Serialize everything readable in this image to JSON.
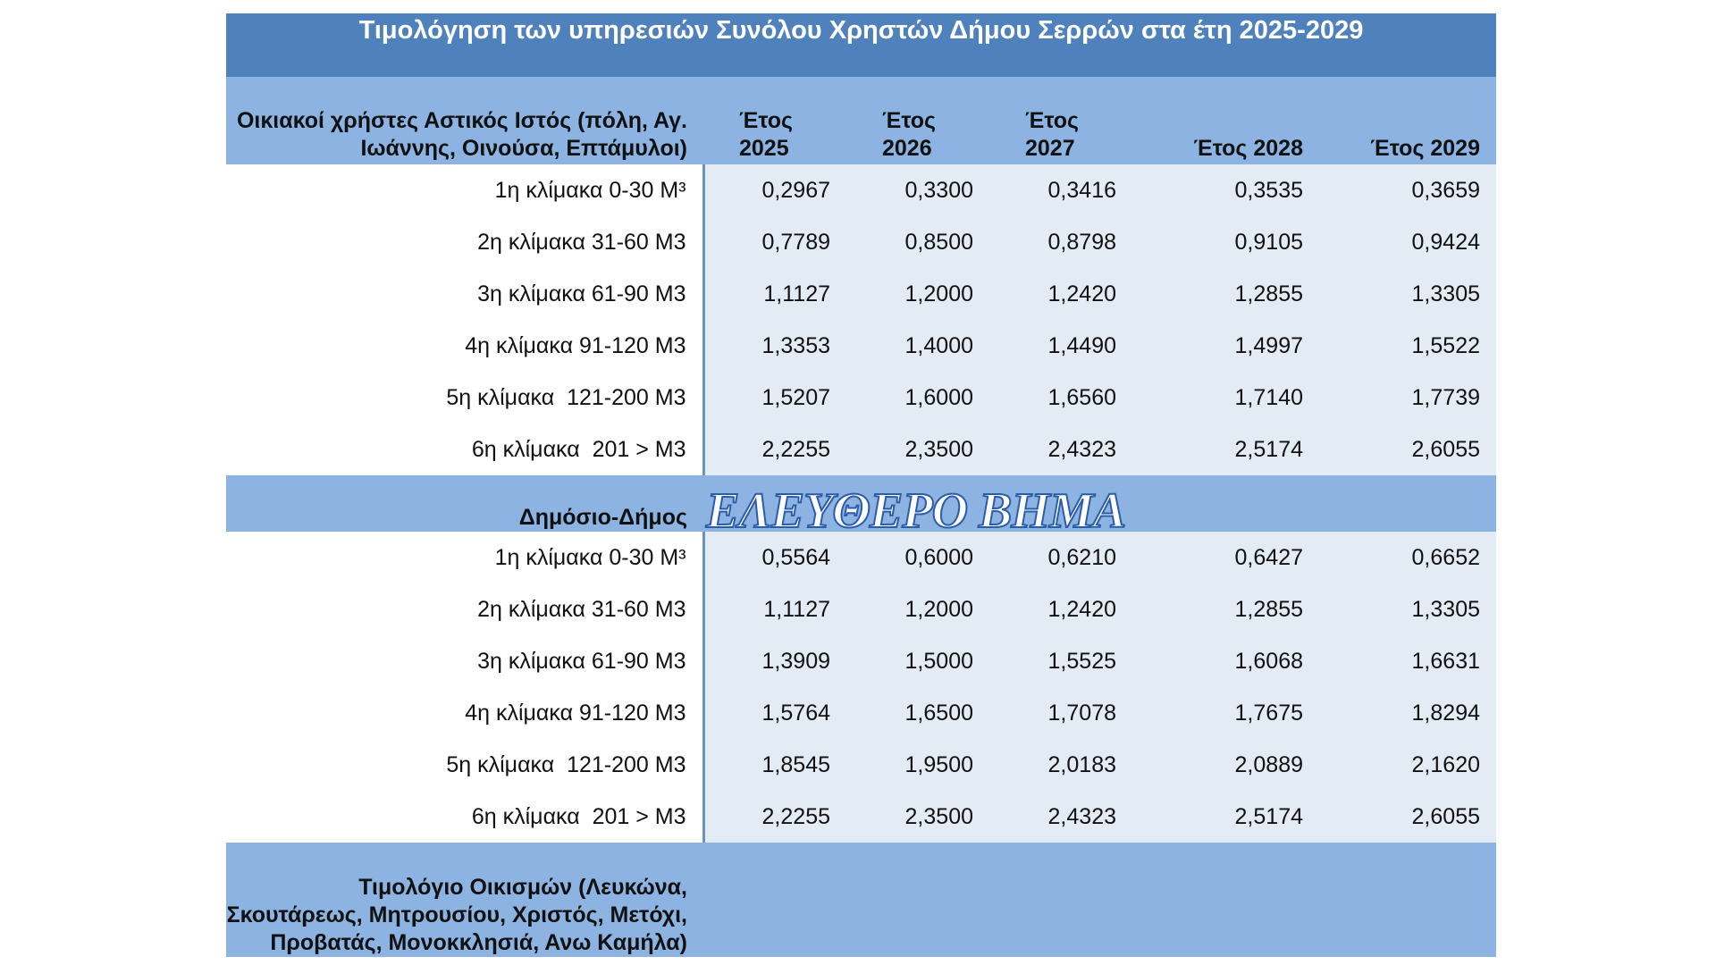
{
  "title": "Τιμολόγηση των υπηρεσιών Συνόλου Χρηστών Δήμου Σερρών στα έτη 2025-2029",
  "columns": [
    "Έτος 2025",
    "Έτος 2026",
    "Έτος 2027",
    "Έτος 2028",
    "Έτος 2029"
  ],
  "sections": [
    {
      "label": "Οικιακοί χρήστες Αστικός Ιστός (πόλη, Αγ. Ιωάννης, Οινούσα, Επτάμυλοι)",
      "rows": [
        {
          "label": "1η κλίμακα 0-30 M³",
          "values": [
            "0,2967",
            "0,3300",
            "0,3416",
            "0,3535",
            "0,3659"
          ]
        },
        {
          "label": "2η κλίμακα 31-60 M3",
          "values": [
            "0,7789",
            "0,8500",
            "0,8798",
            "0,9105",
            "0,9424"
          ]
        },
        {
          "label": "3η κλίμακα 61-90 M3",
          "values": [
            "1,1127",
            "1,2000",
            "1,2420",
            "1,2855",
            "1,3305"
          ]
        },
        {
          "label": "4η κλίμακα 91-120 M3",
          "values": [
            "1,3353",
            "1,4000",
            "1,4490",
            "1,4997",
            "1,5522"
          ]
        },
        {
          "label": "5η κλίμακα  121-200 M3",
          "values": [
            "1,5207",
            "1,6000",
            "1,6560",
            "1,7140",
            "1,7739"
          ]
        },
        {
          "label": "6η κλίμακα  201 > M3",
          "values": [
            "2,2255",
            "2,3500",
            "2,4323",
            "2,5174",
            "2,6055"
          ]
        }
      ]
    },
    {
      "label": "Δημόσιο-Δήμος",
      "rows": [
        {
          "label": "1η κλίμακα 0-30 M³",
          "values": [
            "0,5564",
            "0,6000",
            "0,6210",
            "0,6427",
            "0,6652"
          ]
        },
        {
          "label": "2η κλίμακα 31-60 M3",
          "values": [
            "1,1127",
            "1,2000",
            "1,2420",
            "1,2855",
            "1,3305"
          ]
        },
        {
          "label": "3η κλίμακα 61-90 M3",
          "values": [
            "1,3909",
            "1,5000",
            "1,5525",
            "1,6068",
            "1,6631"
          ]
        },
        {
          "label": "4η κλίμακα 91-120 M3",
          "values": [
            "1,5764",
            "1,6500",
            "1,7078",
            "1,7675",
            "1,8294"
          ]
        },
        {
          "label": "5η κλίμακα  121-200 M3",
          "values": [
            "1,8545",
            "1,9500",
            "2,0183",
            "2,0889",
            "2,1620"
          ]
        },
        {
          "label": "6η κλίμακα  201 > M3",
          "values": [
            "2,2255",
            "2,3500",
            "2,4323",
            "2,5174",
            "2,6055"
          ]
        }
      ]
    },
    {
      "label": "Τιμολόγιο Οικισμών (Λευκώνα, Σκουτάρεως, Μητρουσίου, Χριστός, Μετόχι, Προβατάς, Μονοκκλησιά, Ανω Καμήλα)",
      "rows": []
    }
  ],
  "watermark": "ΕΛΕΥΘΕΡΟ ΒΗΜΑ"
}
